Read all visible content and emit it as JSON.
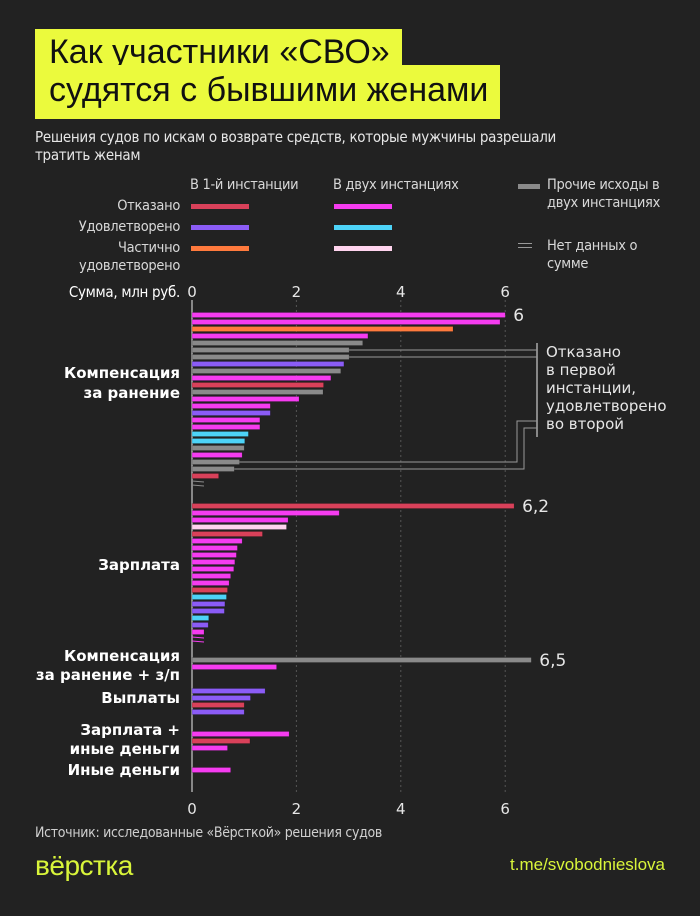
{
  "header": {
    "title_line1": "Как участники «СВО»",
    "title_line2": "судятся с бывшими женами",
    "subtitle": "Решения судов по искам о возврате средств, которые мужчины разрешали тратить женам"
  },
  "legend": {
    "col1": "В 1-й инстанции",
    "col2": "В двух инстанциях",
    "rows": [
      {
        "label": "Отказано",
        "first": "#d9415a",
        "both": "#f53cf0"
      },
      {
        "label": "Удовлетворено",
        "first": "#8b5cf6",
        "both": "#4dd3f7"
      },
      {
        "label": "Частично удовлетворено",
        "first": "#ff7a3d",
        "both": "#ffd4ee"
      }
    ],
    "other": {
      "label": "Прочие исходы в двух инстанциях",
      "color": "#8a8a8a"
    },
    "nodata": {
      "label": "Нет данных о сумме"
    }
  },
  "chart_data": {
    "type": "bar",
    "orientation": "horizontal",
    "xlabel": "Сумма, млн руб.",
    "xlim": [
      0,
      6.5
    ],
    "xticks": [
      "0",
      "2",
      "4",
      "6"
    ],
    "grid": true,
    "outcomes": {
      "red": "Отказано в 1-й инстанции",
      "purple": "Удовлетворено в 1-й инстанции",
      "orange": "Частично удовлетворено в 1-й инстанции",
      "magenta": "Отказано в двух инстанциях",
      "cyan": "Удовлетворено в двух инстанциях",
      "pink": "Частично удовлетворено в двух инстанциях",
      "gray": "Прочие исходы в двух инстанциях"
    },
    "groups": [
      {
        "label": "Компенсация за ранение",
        "bars": [
          {
            "v": 6.0,
            "c": "magenta",
            "label": "6"
          },
          {
            "v": 5.9,
            "c": "magenta"
          },
          {
            "v": 5.0,
            "c": "orange"
          },
          {
            "v": 3.37,
            "c": "magenta"
          },
          {
            "v": 3.27,
            "c": "gray"
          },
          {
            "v": 3.01,
            "c": "gray",
            "note": true
          },
          {
            "v": 3.01,
            "c": "gray",
            "note": true
          },
          {
            "v": 2.91,
            "c": "purple"
          },
          {
            "v": 2.85,
            "c": "gray"
          },
          {
            "v": 2.66,
            "c": "magenta"
          },
          {
            "v": 2.52,
            "c": "red"
          },
          {
            "v": 2.51,
            "c": "gray"
          },
          {
            "v": 2.05,
            "c": "magenta"
          },
          {
            "v": 1.5,
            "c": "magenta"
          },
          {
            "v": 1.5,
            "c": "purple"
          },
          {
            "v": 1.3,
            "c": "magenta"
          },
          {
            "v": 1.3,
            "c": "magenta"
          },
          {
            "v": 1.08,
            "c": "cyan"
          },
          {
            "v": 1.01,
            "c": "cyan"
          },
          {
            "v": 1.0,
            "c": "gray"
          },
          {
            "v": 0.96,
            "c": "magenta"
          },
          {
            "v": 0.91,
            "c": "gray",
            "note": true
          },
          {
            "v": 0.81,
            "c": "gray",
            "note": true
          },
          {
            "v": 0.51,
            "c": "red"
          },
          {
            "v": null,
            "c": "gray"
          },
          {
            "v": null,
            "c": "gray"
          }
        ]
      },
      {
        "label": "Зарплата",
        "bars": [
          {
            "v": 6.17,
            "c": "red",
            "label": "6,2"
          },
          {
            "v": 2.82,
            "c": "magenta"
          },
          {
            "v": 1.84,
            "c": "magenta"
          },
          {
            "v": 1.81,
            "c": "pink"
          },
          {
            "v": 1.35,
            "c": "red"
          },
          {
            "v": 0.96,
            "c": "magenta"
          },
          {
            "v": 0.87,
            "c": "magenta"
          },
          {
            "v": 0.85,
            "c": "magenta"
          },
          {
            "v": 0.82,
            "c": "magenta"
          },
          {
            "v": 0.8,
            "c": "magenta"
          },
          {
            "v": 0.74,
            "c": "magenta"
          },
          {
            "v": 0.71,
            "c": "magenta"
          },
          {
            "v": 0.68,
            "c": "red"
          },
          {
            "v": 0.66,
            "c": "cyan"
          },
          {
            "v": 0.63,
            "c": "purple"
          },
          {
            "v": 0.62,
            "c": "purple"
          },
          {
            "v": 0.32,
            "c": "cyan"
          },
          {
            "v": 0.31,
            "c": "purple"
          },
          {
            "v": 0.23,
            "c": "magenta"
          },
          {
            "v": null,
            "c": "magenta"
          },
          {
            "v": null,
            "c": "magenta"
          }
        ]
      },
      {
        "label": "Компенсация за ранение + з/п",
        "bars": [
          {
            "v": 6.5,
            "c": "gray",
            "label": "6,5"
          },
          {
            "v": 1.62,
            "c": "magenta"
          }
        ]
      },
      {
        "label": "Выплаты",
        "bars": [
          {
            "v": 1.4,
            "c": "purple"
          },
          {
            "v": 1.12,
            "c": "purple"
          },
          {
            "v": 1.0,
            "c": "red"
          },
          {
            "v": 1.0,
            "c": "purple"
          }
        ]
      },
      {
        "label": "Зарплата + иные деньги",
        "bars": [
          {
            "v": 1.86,
            "c": "magenta"
          },
          {
            "v": 1.11,
            "c": "red"
          },
          {
            "v": 0.68,
            "c": "magenta"
          }
        ]
      },
      {
        "label": "Иные деньги",
        "bars": [
          {
            "v": 0.74,
            "c": "magenta"
          }
        ]
      }
    ],
    "annotation": "Отказано в первой инстанции, удовлетворено во второй"
  },
  "footer": {
    "source": "Источник: исследованные «Вёрсткой» решения судов",
    "logo": "вёрстка",
    "link": "t.me/svobodnieslova"
  }
}
